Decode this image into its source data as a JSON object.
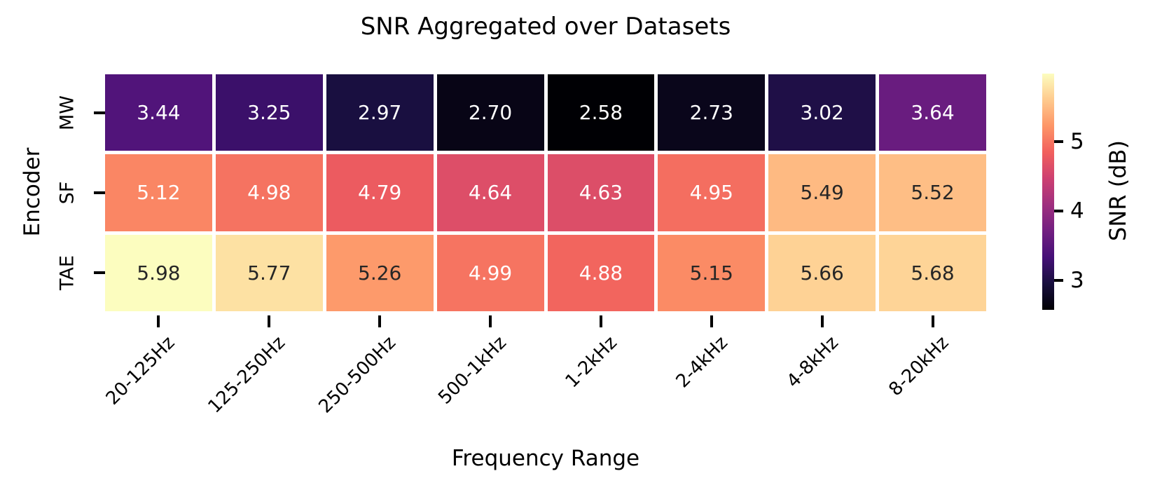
{
  "figure": {
    "background": "#ffffff"
  },
  "chart_data": {
    "type": "heatmap",
    "title": "SNR Aggregated over Datasets",
    "xlabel": "Frequency Range",
    "ylabel": "Encoder",
    "categories_x": [
      "20-125Hz",
      "125-250Hz",
      "250-500Hz",
      "500-1kHz",
      "1-2kHz",
      "2-4kHz",
      "4-8kHz",
      "8-20kHz"
    ],
    "categories_y": [
      "MW",
      "SF",
      "TAE"
    ],
    "series": [
      {
        "name": "MW",
        "values": [
          3.44,
          3.25,
          2.97,
          2.7,
          2.58,
          2.73,
          3.02,
          3.64
        ]
      },
      {
        "name": "SF",
        "values": [
          5.12,
          4.98,
          4.79,
          4.64,
          4.63,
          4.95,
          5.49,
          5.52
        ]
      },
      {
        "name": "TAE",
        "values": [
          5.98,
          5.77,
          5.26,
          4.99,
          4.88,
          5.15,
          5.66,
          5.68
        ]
      }
    ],
    "annotation_decimals": 2,
    "grid_line_color": "#ffffff",
    "colorbar": {
      "label": "SNR (dB)",
      "ticks": [
        3,
        4,
        5
      ],
      "vmin": 2.58,
      "vmax": 5.98
    },
    "colormap": {
      "name": "magma",
      "stops": [
        "#000004",
        "#180f3e",
        "#451077",
        "#721f81",
        "#9f2f7f",
        "#cd4071",
        "#f1605d",
        "#fd9567",
        "#feca8d",
        "#fcfdbf"
      ],
      "luminance_threshold": 0.39
    },
    "annotation_text_colors": {
      "on_dark": "#ffffff",
      "on_light": "#262626"
    }
  }
}
